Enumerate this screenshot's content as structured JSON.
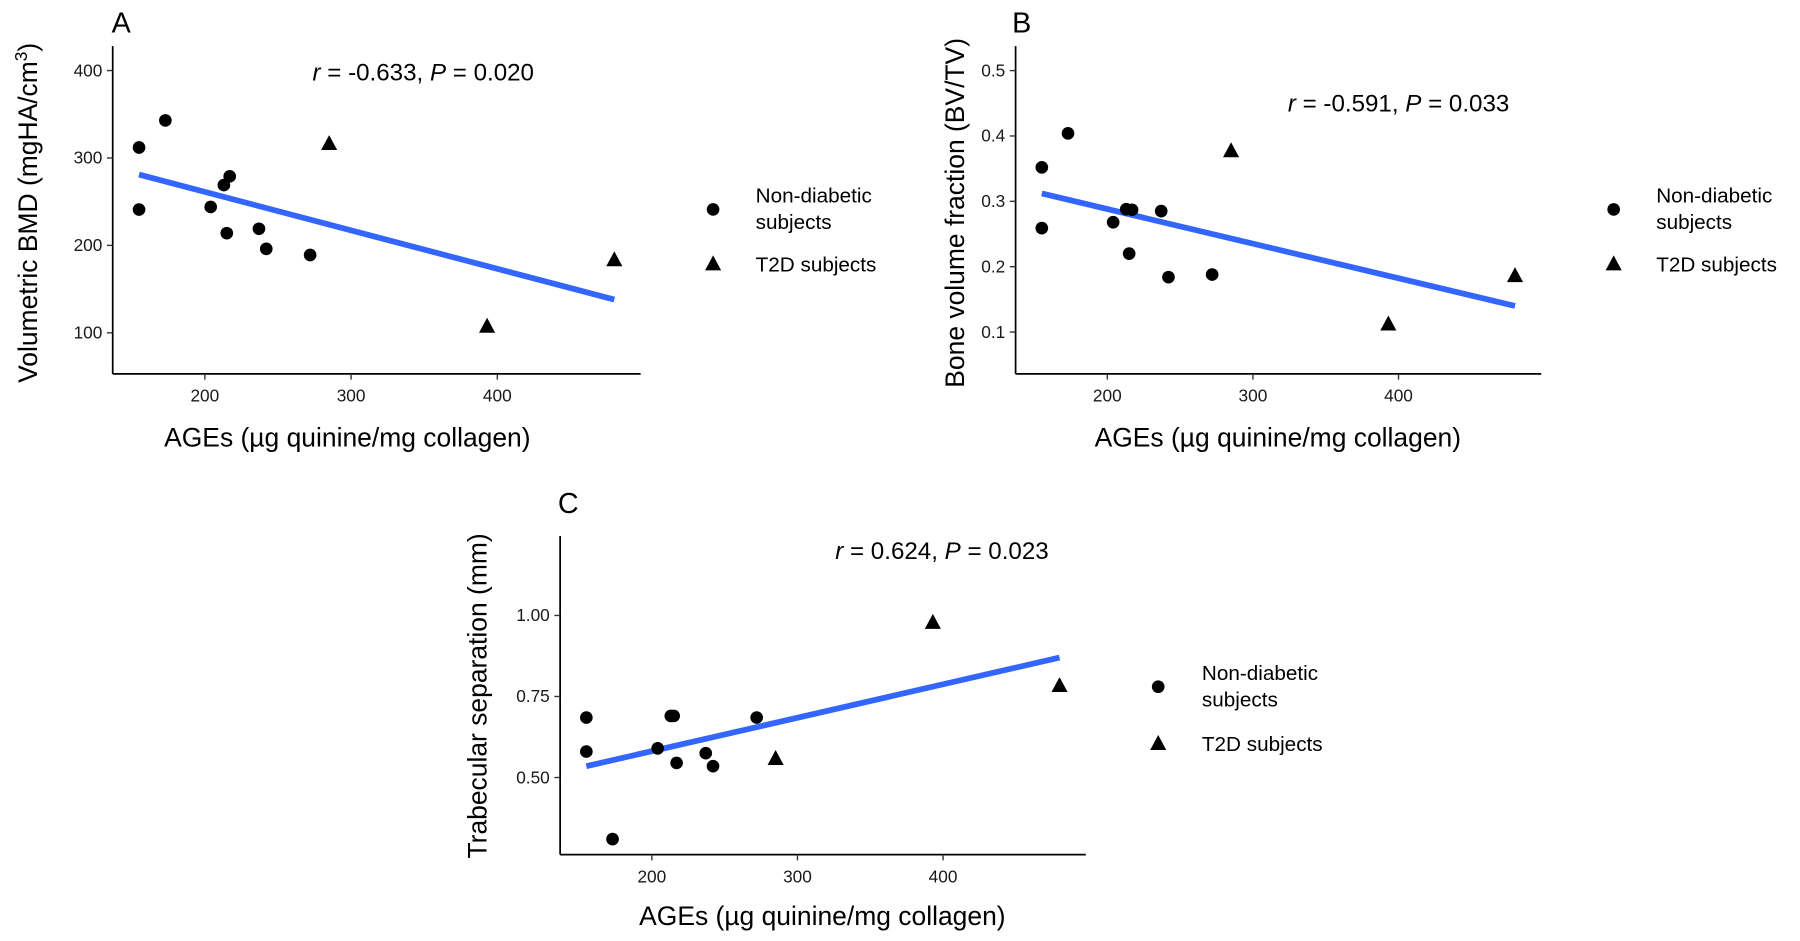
{
  "legend": {
    "non_diabetic_line1": "Non-diabetic",
    "non_diabetic_line2": "subjects",
    "t2d": "T2D subjects"
  },
  "colors": {
    "fit_line": "#3366ff",
    "points": "#000000"
  },
  "chart_data": [
    {
      "type": "scatter",
      "panel": "A",
      "annotation": {
        "r_symbol": "r",
        "r_value": " = -0.633, ",
        "p_symbol": "P",
        "p_value": " = 0.020"
      },
      "xlabel": "AGEs (µg quinine/mg collagen)",
      "ylabel_main": "Volumetric BMD (mgHA/cm",
      "ylabel_sup": "3",
      "ylabel_end": ")",
      "xlim": [
        137,
        498
      ],
      "ylim": [
        53,
        428
      ],
      "xticks": [
        200,
        300,
        400
      ],
      "xtick_labels": [
        "200",
        "300",
        "400"
      ],
      "yticks": [
        100,
        200,
        300,
        400
      ],
      "ytick_labels": [
        "100",
        "200",
        "300",
        "400"
      ],
      "series": [
        {
          "name": "Non-diabetic subjects",
          "marker": "circle",
          "x": [
            155,
            155,
            173,
            204,
            213,
            215,
            217,
            237,
            242,
            272
          ],
          "y": [
            312,
            241,
            343,
            244,
            269,
            214,
            279,
            219,
            196,
            189
          ]
        },
        {
          "name": "T2D subjects",
          "marker": "triangle",
          "x": [
            285,
            393,
            480
          ],
          "y": [
            317,
            108,
            184
          ]
        }
      ],
      "fit": {
        "x": [
          155,
          480
        ],
        "y": [
          281,
          138
        ]
      }
    },
    {
      "type": "scatter",
      "panel": "B",
      "annotation": {
        "r_symbol": "r",
        "r_value": " = -0.591, ",
        "p_symbol": "P",
        "p_value": " = 0.033"
      },
      "xlabel": "AGEs (µg quinine/mg collagen)",
      "ylabel_main": "Bone volume fraction (BV/TV)",
      "ylabel_sup": "",
      "ylabel_end": "",
      "xlim": [
        137,
        498
      ],
      "ylim": [
        0.036,
        0.5375
      ],
      "xticks": [
        200,
        300,
        400
      ],
      "xtick_labels": [
        "200",
        "300",
        "400"
      ],
      "yticks": [
        0.1,
        0.2,
        0.3,
        0.4,
        0.5
      ],
      "ytick_labels": [
        "0.1",
        "0.2",
        "0.3",
        "0.4",
        "0.5"
      ],
      "series": [
        {
          "name": "Non-diabetic subjects",
          "marker": "circle",
          "x": [
            155,
            155,
            173,
            204,
            213,
            215,
            217,
            237,
            242,
            272
          ],
          "y": [
            0.352,
            0.259,
            0.404,
            0.268,
            0.288,
            0.22,
            0.287,
            0.285,
            0.184,
            0.188
          ]
        },
        {
          "name": "T2D subjects",
          "marker": "triangle",
          "x": [
            285,
            393,
            480
          ],
          "y": [
            0.378,
            0.113,
            0.187
          ]
        }
      ],
      "fit": {
        "x": [
          155,
          480
        ],
        "y": [
          0.312,
          0.14
        ]
      }
    },
    {
      "type": "scatter",
      "panel": "C",
      "annotation": {
        "r_symbol": "r",
        "r_value": " = 0.624, ",
        "p_symbol": "P",
        "p_value": " = 0.023"
      },
      "xlabel": "AGEs (µg quinine/mg collagen)",
      "ylabel_main": "Trabecular separation (mm)",
      "ylabel_sup": "",
      "ylabel_end": "",
      "xlim": [
        137,
        498
      ],
      "ylim": [
        0.262,
        1.245
      ],
      "xticks": [
        200,
        300,
        400
      ],
      "xtick_labels": [
        "200",
        "300",
        "400"
      ],
      "yticks": [
        0.5,
        0.75,
        1.0
      ],
      "ytick_labels": [
        "0.50",
        "0.75",
        "1.00"
      ],
      "series": [
        {
          "name": "Non-diabetic subjects",
          "marker": "circle",
          "x": [
            155,
            155,
            173,
            204,
            213,
            215,
            217,
            237,
            242,
            272
          ],
          "y": [
            0.685,
            0.58,
            0.31,
            0.59,
            0.69,
            0.69,
            0.545,
            0.575,
            0.535,
            0.685
          ]
        },
        {
          "name": "T2D subjects",
          "marker": "triangle",
          "x": [
            285,
            393,
            480
          ],
          "y": [
            0.56,
            0.98,
            0.785
          ]
        }
      ],
      "fit": {
        "x": [
          155,
          480
        ],
        "y": [
          0.535,
          0.87
        ]
      }
    }
  ]
}
